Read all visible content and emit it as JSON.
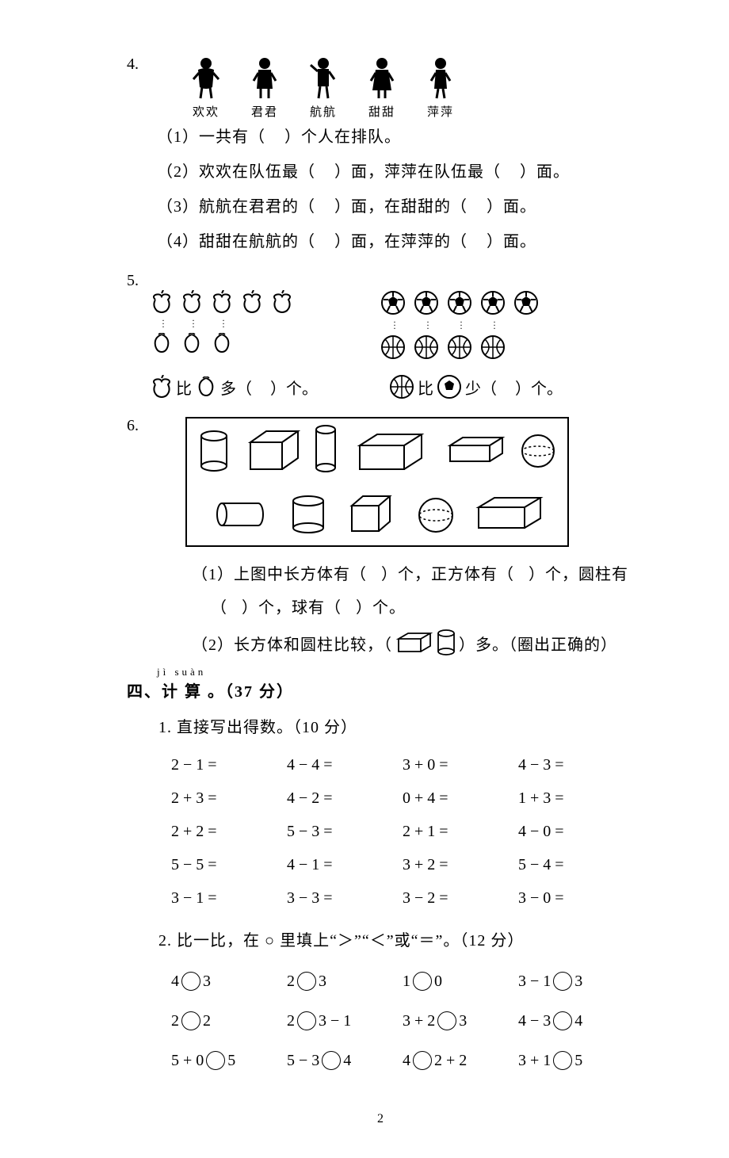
{
  "q4": {
    "num": "4.",
    "children": [
      {
        "name": "欢欢"
      },
      {
        "name": "君君"
      },
      {
        "name": "航航"
      },
      {
        "name": "甜甜"
      },
      {
        "name": "萍萍"
      }
    ],
    "line1_a": "（1）一共有（",
    "line1_b": "）个人在排队。",
    "line2_a": "（2）欢欢在队伍最（",
    "line2_b": "）面，萍萍在队伍最（",
    "line2_c": "）面。",
    "line3_a": "（3）航航在君君的（",
    "line3_b": "）面，在甜甜的（",
    "line3_c": "）面。",
    "line4_a": "（4）甜甜在航航的（",
    "line4_b": "）面，在萍萍的（",
    "line4_c": "）面。"
  },
  "q5": {
    "num": "5.",
    "cmp1_mid": "比",
    "cmp1_tail_a": "多（",
    "cmp1_tail_b": "）个。",
    "cmp2_mid": "比",
    "cmp2_tail_a": "少（",
    "cmp2_tail_b": "）个。"
  },
  "q6": {
    "num": "6.",
    "line1_a": "（1）上图中长方体有（",
    "line1_b": "）个，正方体有（",
    "line1_c": "）个，圆柱有",
    "line1d_a": "（",
    "line1d_b": "）个，球有（",
    "line1d_c": "）个。",
    "line2_a": "（2）长方体和圆柱比较，（",
    "line2_b": "）多。（圈出正确的）"
  },
  "section4": {
    "pinyin": "jì  suàn",
    "title": "四、计 算 。（37 分）"
  },
  "sub1": {
    "title": "1. 直接写出得数。（10 分）",
    "rows": [
      [
        "2 − 1 =",
        "4 − 4 =",
        "3 + 0 =",
        "4 − 3 ="
      ],
      [
        "2 + 3 =",
        "4 − 2 =",
        "0 + 4 =",
        "1 + 3 ="
      ],
      [
        "2 + 2 =",
        "5 − 3 =",
        "2 + 1 =",
        "4 − 0 ="
      ],
      [
        "5 − 5 =",
        "4 − 1 =",
        "3 + 2 =",
        "5 − 4 ="
      ],
      [
        "3 − 1 =",
        "3 − 3 =",
        "3 − 2 =",
        "3 − 0 ="
      ]
    ]
  },
  "sub2": {
    "title": "2. 比一比，在 ○ 里填上“＞”“＜”或“＝”。（12 分）",
    "rows": [
      [
        {
          "l": "4",
          "r": "3"
        },
        {
          "l": "2",
          "r": "3"
        },
        {
          "l": "1",
          "r": "0"
        },
        {
          "l": "3 − 1",
          "r": "3"
        }
      ],
      [
        {
          "l": "2",
          "r": "2"
        },
        {
          "l": "2",
          "r": "3 − 1"
        },
        {
          "l": "3 + 2",
          "r": "3"
        },
        {
          "l": "4 − 3",
          "r": "4"
        }
      ],
      [
        {
          "l": "5 + 0",
          "r": "5"
        },
        {
          "l": "5 − 3",
          "r": "4"
        },
        {
          "l": "4",
          "r": "2 + 2"
        },
        {
          "l": "3 + 1",
          "r": "5"
        }
      ]
    ]
  },
  "pageNum": "2"
}
